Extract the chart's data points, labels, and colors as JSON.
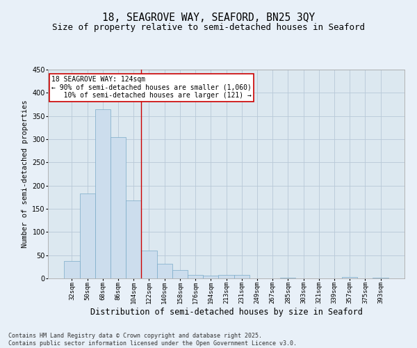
{
  "title": "18, SEAGROVE WAY, SEAFORD, BN25 3QY",
  "subtitle": "Size of property relative to semi-detached houses in Seaford",
  "xlabel": "Distribution of semi-detached houses by size in Seaford",
  "ylabel": "Number of semi-detached properties",
  "bar_color": "#ccdded",
  "bar_edge_color": "#7aaac8",
  "grid_color": "#b8c8d8",
  "background_color": "#dce8f0",
  "fig_background_color": "#e8f0f8",
  "categories": [
    "32sqm",
    "50sqm",
    "68sqm",
    "86sqm",
    "104sqm",
    "122sqm",
    "140sqm",
    "158sqm",
    "176sqm",
    "194sqm",
    "213sqm",
    "231sqm",
    "249sqm",
    "267sqm",
    "285sqm",
    "303sqm",
    "321sqm",
    "339sqm",
    "357sqm",
    "375sqm",
    "393sqm"
  ],
  "values": [
    37,
    183,
    365,
    305,
    168,
    60,
    32,
    18,
    8,
    6,
    8,
    8,
    0,
    0,
    1,
    0,
    0,
    0,
    3,
    0,
    2
  ],
  "ylim": [
    0,
    450
  ],
  "yticks": [
    0,
    50,
    100,
    150,
    200,
    250,
    300,
    350,
    400,
    450
  ],
  "vline_index": 5,
  "vline_color": "#cc0000",
  "annotation_text_line1": "18 SEAGROVE WAY: 124sqm",
  "annotation_text_line2": "← 90% of semi-detached houses are smaller (1,060)",
  "annotation_text_line3": "   10% of semi-detached houses are larger (121) →",
  "annotation_box_color": "#cc0000",
  "footer_text": "Contains HM Land Registry data © Crown copyright and database right 2025.\nContains public sector information licensed under the Open Government Licence v3.0.",
  "title_fontsize": 10.5,
  "subtitle_fontsize": 9,
  "xlabel_fontsize": 8.5,
  "ylabel_fontsize": 7.5,
  "tick_fontsize": 6.5,
  "annotation_fontsize": 7,
  "footer_fontsize": 6
}
